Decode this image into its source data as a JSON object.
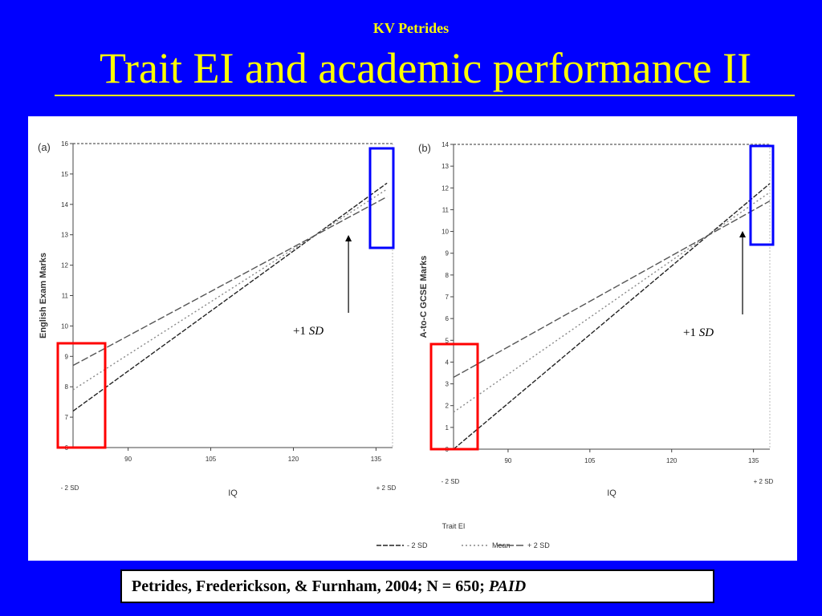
{
  "header": {
    "author": "KV Petrides",
    "title": "Trait EI and academic performance II"
  },
  "citation": {
    "text": "Petrides, Frederickson, & Furnham, 2004; N = 650;",
    "journal": "PAID"
  },
  "colors": {
    "background": "#0000ff",
    "title": "#ffff00",
    "highlight_red": "#ff0000",
    "highlight_blue": "#0000ff"
  },
  "legend": {
    "title": "Trait EI",
    "items": [
      "- 2 SD",
      "Mean",
      "+ 2 SD"
    ],
    "placement": "bottom"
  },
  "chart_data": [
    {
      "type": "line",
      "panel_label": "(a)",
      "xlabel": "IQ",
      "ylabel": "English Exam Marks",
      "xlim": [
        80,
        138
      ],
      "ylim": [
        6,
        16
      ],
      "xticks": [
        "90",
        "105",
        "120",
        "135"
      ],
      "xtick_values": [
        90,
        105,
        120,
        135
      ],
      "yticks": [
        "6",
        "7",
        "8",
        "9",
        "10",
        "11",
        "12",
        "13",
        "14",
        "15",
        "16"
      ],
      "x_extra_labels": [
        "- 2 SD",
        "+ 2 SD"
      ],
      "series": [
        {
          "name": "- 2 SD",
          "x": [
            80,
            137
          ],
          "y": [
            7.2,
            14.7
          ]
        },
        {
          "name": "Mean",
          "x": [
            80,
            137
          ],
          "y": [
            7.9,
            14.5
          ]
        },
        {
          "name": "+ 2 SD",
          "x": [
            80,
            137
          ],
          "y": [
            8.7,
            14.25
          ]
        }
      ],
      "annotation": {
        "label": "+1",
        "label_italic": "SD",
        "x": 130
      }
    },
    {
      "type": "line",
      "panel_label": "(b)",
      "xlabel": "IQ",
      "ylabel": "A-to-C GCSE Marks",
      "xlim": [
        80,
        138
      ],
      "ylim": [
        0,
        14
      ],
      "xticks": [
        "90",
        "105",
        "120",
        "135"
      ],
      "xtick_values": [
        90,
        105,
        120,
        135
      ],
      "yticks": [
        "0",
        "1",
        "2",
        "3",
        "4",
        "5",
        "6",
        "7",
        "8",
        "9",
        "10",
        "11",
        "12",
        "13",
        "14"
      ],
      "x_extra_labels": [
        "- 2 SD",
        "+ 2 SD"
      ],
      "series": [
        {
          "name": "- 2 SD",
          "x": [
            80,
            138
          ],
          "y": [
            0.0,
            12.2
          ]
        },
        {
          "name": "Mean",
          "x": [
            80,
            138
          ],
          "y": [
            1.7,
            11.8
          ]
        },
        {
          "name": "+ 2 SD",
          "x": [
            80,
            138
          ],
          "y": [
            3.3,
            11.4
          ]
        }
      ],
      "annotation": {
        "label": "+1",
        "label_italic": "SD",
        "x": 133
      }
    }
  ]
}
